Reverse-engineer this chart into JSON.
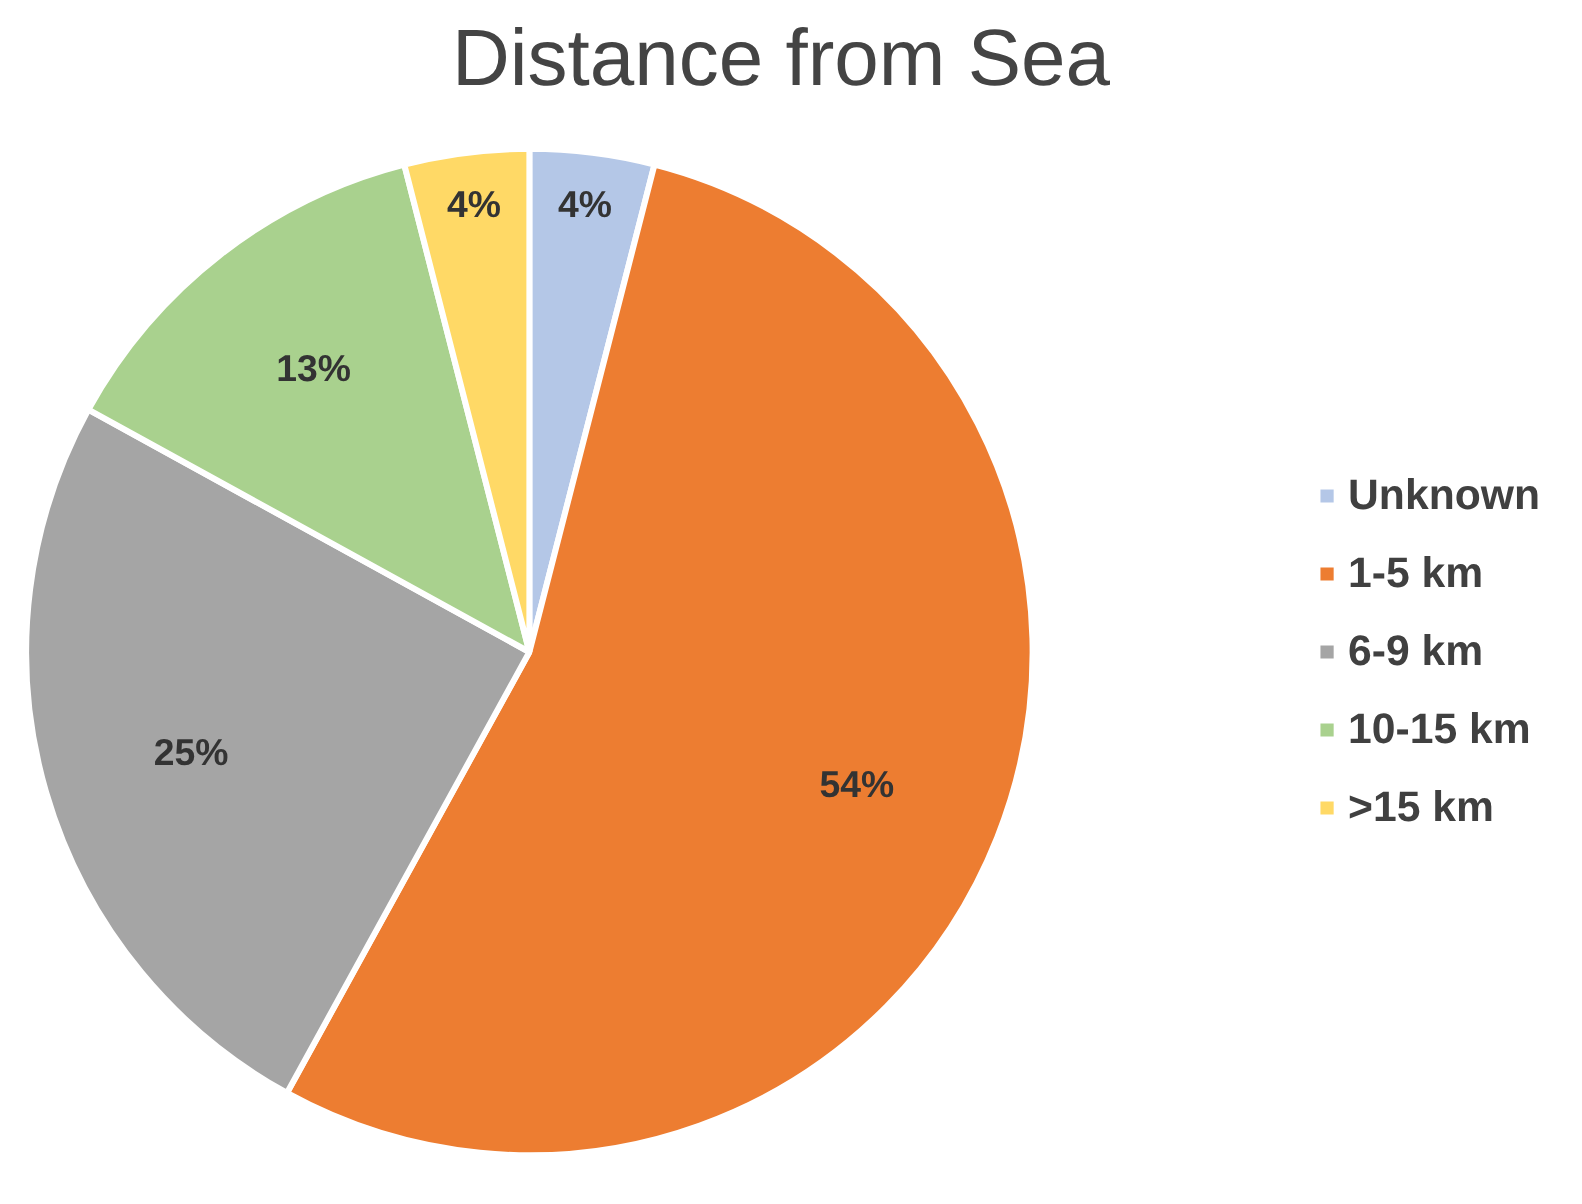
{
  "chart_data": {
    "type": "pie",
    "title": "Distance from Sea",
    "categories": [
      "Unknown",
      "1-5 km",
      "6-9 km",
      "10-15 km",
      ">15 km"
    ],
    "values": [
      4,
      54,
      25,
      13,
      4
    ],
    "colors": [
      "#b4c7e7",
      "#ed7d31",
      "#a5a5a5",
      "#a9d18e",
      "#ffd966"
    ],
    "value_labels": [
      "4%",
      "54%",
      "25%",
      "13%",
      "4%"
    ],
    "legend": "right"
  }
}
